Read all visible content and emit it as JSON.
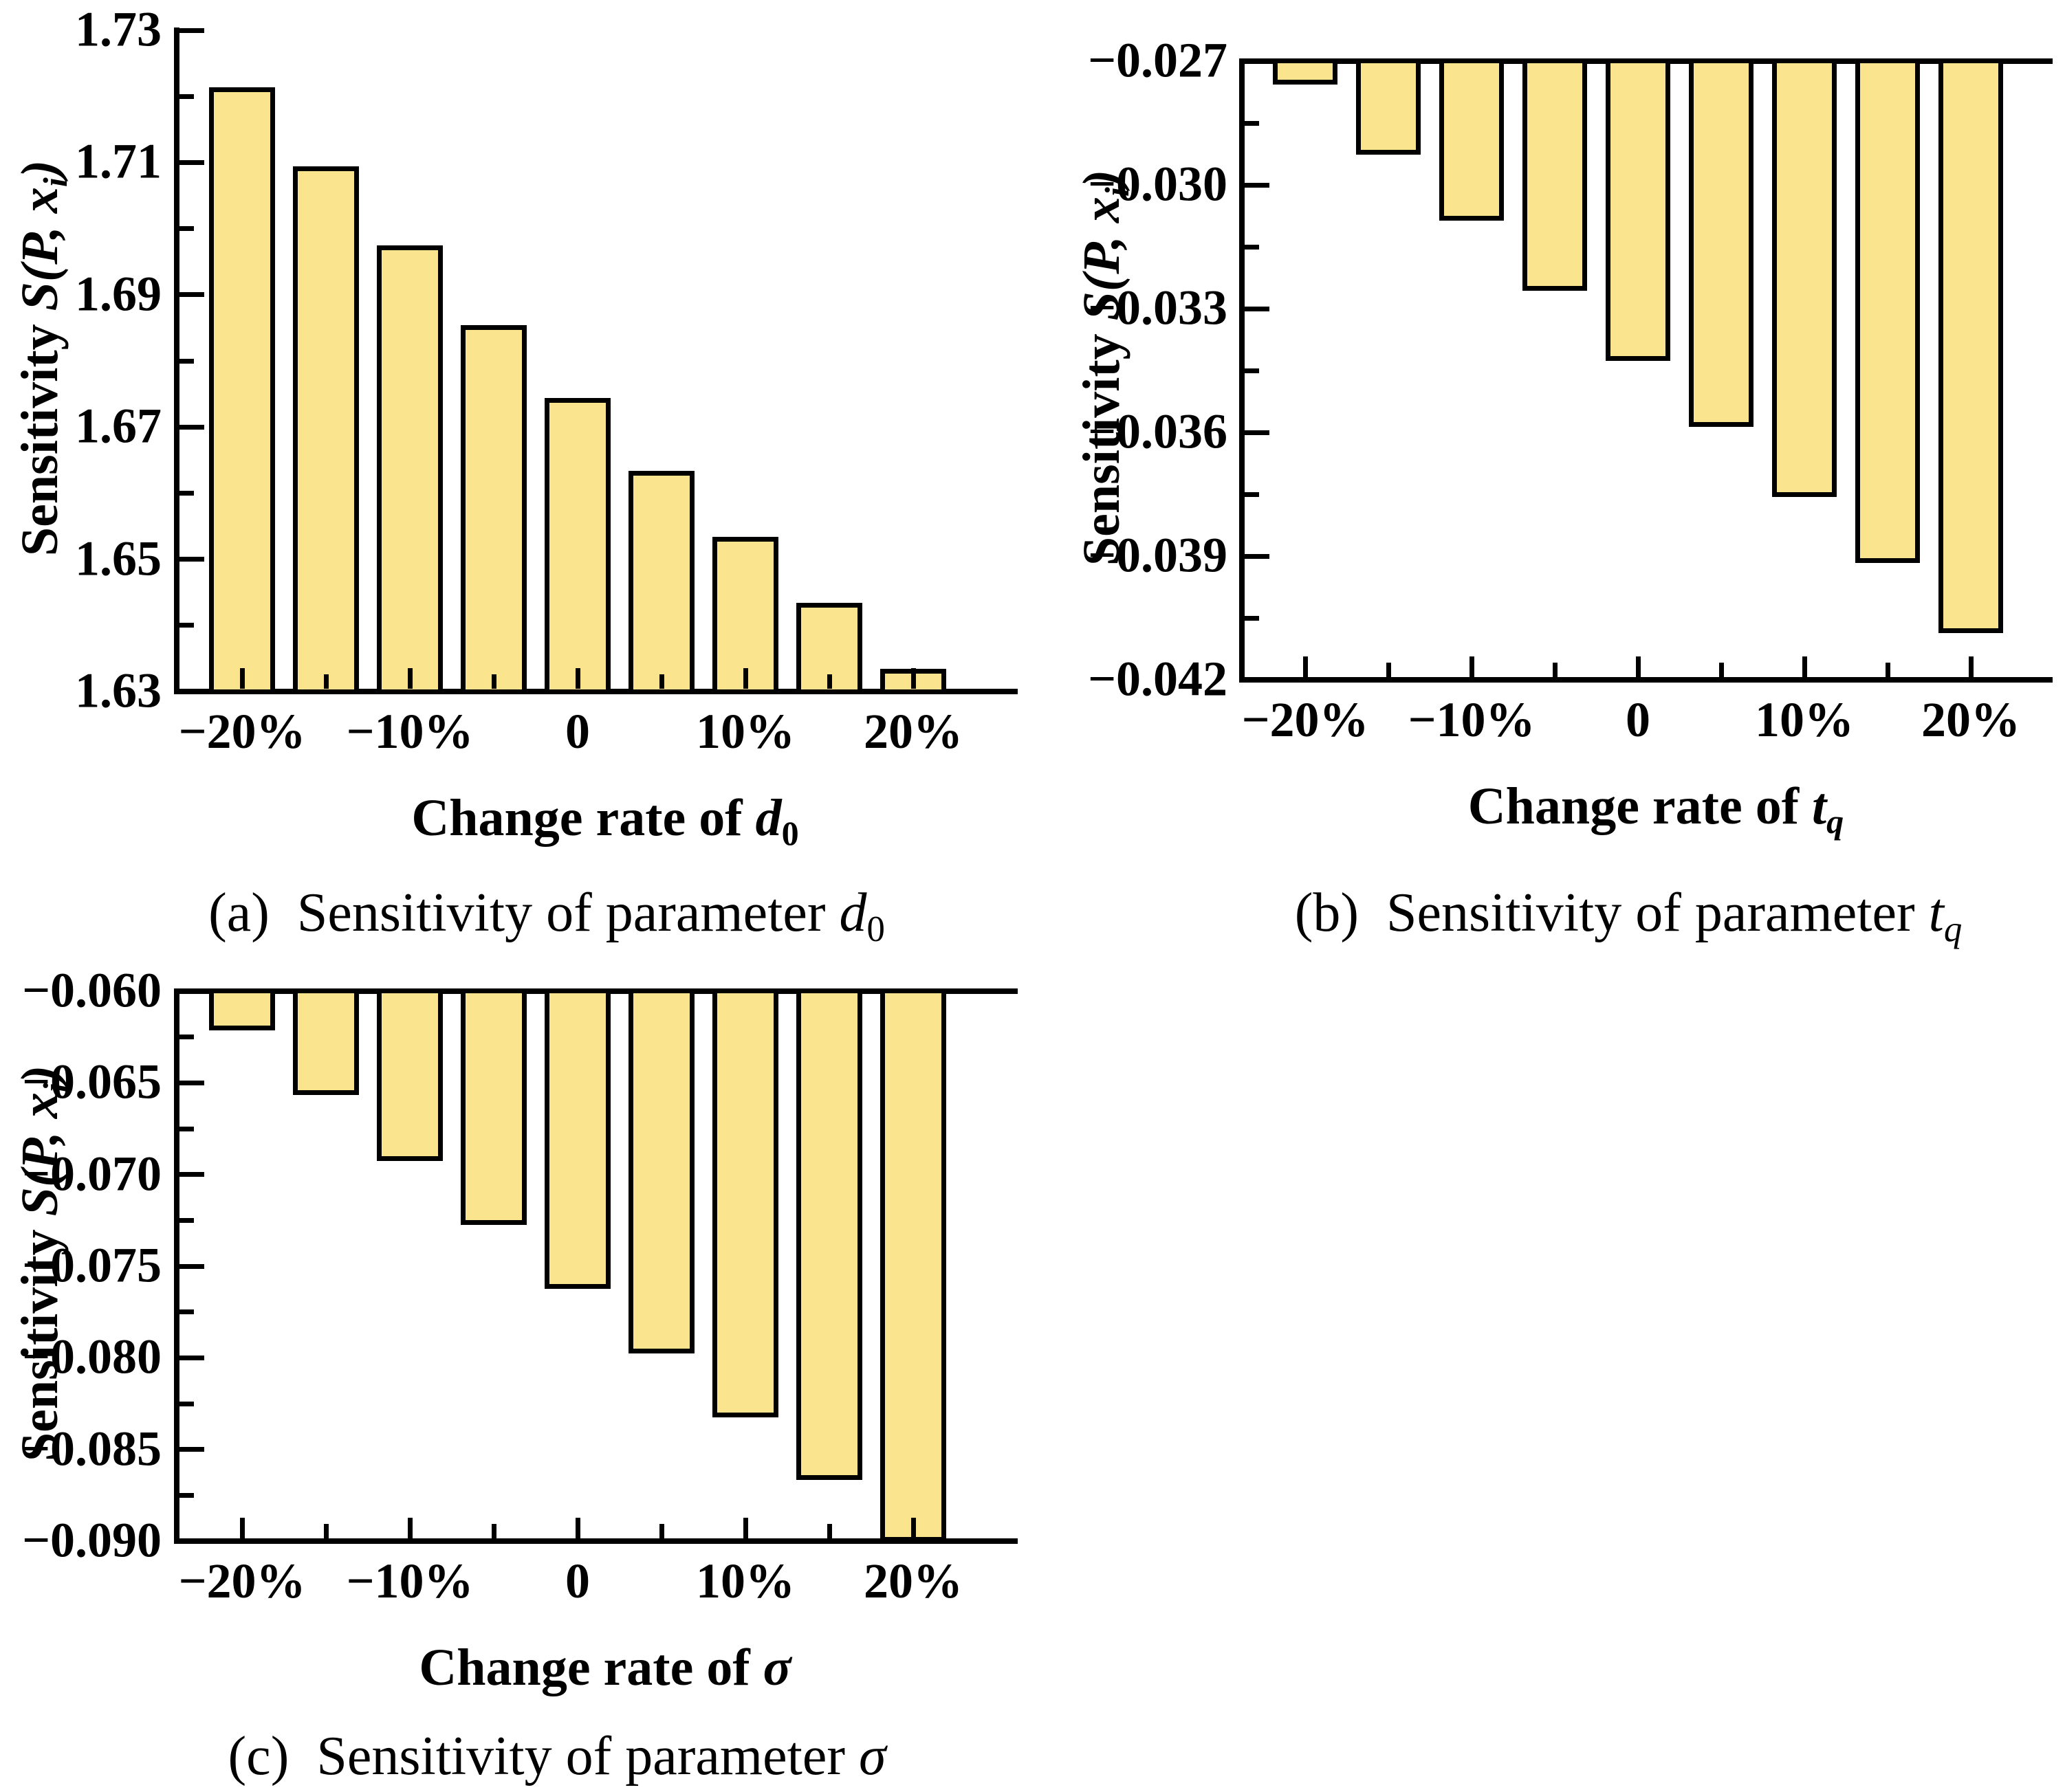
{
  "figure": {
    "background": "#ffffff",
    "bar_fill": "#FAE48E",
    "bar_edge": "#000000",
    "axis_color": "#000000",
    "text_color": "#000000"
  },
  "chart_data": [
    {
      "id": "a",
      "type": "bar",
      "title": "",
      "categories": [
        "−20%",
        "−15%",
        "−10%",
        "−5%",
        "0",
        "5%",
        "10%",
        "15%",
        "20%"
      ],
      "values": [
        1.721,
        1.709,
        1.697,
        1.685,
        1.674,
        1.663,
        1.653,
        1.643,
        1.633
      ],
      "baseline": "bottom",
      "baseline_value": 1.63,
      "ylim": [
        1.63,
        1.73
      ],
      "ytick_values": [
        1.73,
        1.71,
        1.69,
        1.67,
        1.65,
        1.63
      ],
      "ytick_labels": [
        "1.73",
        "1.71",
        "1.69",
        "1.67",
        "1.65",
        "1.63"
      ],
      "minor_ytick_step": 0.01,
      "xtick_labels": [
        "−20%",
        "−10%",
        "0",
        "10%",
        "20%"
      ],
      "xlabel_parts": {
        "prefix": "Change rate of ",
        "sym": "d",
        "sym_italic": true,
        "sub": "0",
        "sub_italic": false
      },
      "ylabel_parts": {
        "prefix": "Sensitivity ",
        "math": "S(P, x",
        "sub": "i",
        "suffix": ")"
      },
      "caption_parts": {
        "index": "(a)",
        "text": "Sensitivity of parameter ",
        "sym": "d",
        "sym_italic": true,
        "sub": "0",
        "sub_italic": false
      },
      "legend": "none",
      "grid": false,
      "bar_color": "#FAE48E"
    },
    {
      "id": "b",
      "type": "bar",
      "title": "",
      "categories": [
        "−20%",
        "−15%",
        "−10%",
        "−5%",
        "0",
        "5%",
        "10%",
        "15%",
        "20%"
      ],
      "values": [
        -0.0275,
        -0.0292,
        -0.0308,
        -0.0325,
        -0.0342,
        -0.0358,
        -0.0375,
        -0.0391,
        -0.0408
      ],
      "baseline": "top",
      "baseline_value": -0.027,
      "ylim": [
        -0.042,
        -0.027
      ],
      "ytick_values": [
        -0.027,
        -0.03,
        -0.033,
        -0.036,
        -0.039,
        -0.042
      ],
      "ytick_labels": [
        "−0.027",
        "−0.030",
        "−0.033",
        "−0.036",
        "−0.039",
        "−0.042"
      ],
      "minor_ytick_step": 0.0015,
      "xtick_labels": [
        "−20%",
        "−10%",
        "0",
        "10%",
        "20%"
      ],
      "xlabel_parts": {
        "prefix": "Change rate of ",
        "sym": "t",
        "sym_italic": true,
        "sub": "q",
        "sub_italic": true
      },
      "ylabel_parts": {
        "prefix": "Sensitivity ",
        "math": "S(P, x",
        "sub": "i",
        "suffix": ")"
      },
      "caption_parts": {
        "index": "(b)",
        "text": "Sensitivity of parameter ",
        "sym": "t",
        "sym_italic": true,
        "sub": "q",
        "sub_italic": true
      },
      "legend": "none",
      "grid": false,
      "bar_color": "#FAE48E"
    },
    {
      "id": "c",
      "type": "bar",
      "title": "",
      "categories": [
        "−20%",
        "−15%",
        "−10%",
        "−5%",
        "0",
        "5%",
        "10%",
        "15%",
        "20%"
      ],
      "values": [
        -0.062,
        -0.0655,
        -0.0691,
        -0.0726,
        -0.0761,
        -0.0796,
        -0.0831,
        -0.0865,
        -0.0899
      ],
      "baseline": "top",
      "baseline_value": -0.06,
      "ylim": [
        -0.09,
        -0.06
      ],
      "ytick_values": [
        -0.06,
        -0.065,
        -0.07,
        -0.075,
        -0.08,
        -0.085,
        -0.09
      ],
      "ytick_labels": [
        "−0.060",
        "−0.065",
        "−0.070",
        "−0.075",
        "−0.080",
        "−0.085",
        "−0.090"
      ],
      "minor_ytick_step": 0.0025,
      "xtick_labels": [
        "−20%",
        "−10%",
        "0",
        "10%",
        "20%"
      ],
      "xlabel_parts": {
        "prefix": "Change rate of ",
        "sym": "σ",
        "sym_italic": true,
        "sub": "",
        "sub_italic": false
      },
      "ylabel_parts": {
        "prefix": "Sensitivity ",
        "math": "S(P, x",
        "sub": "i",
        "suffix": ")"
      },
      "caption_parts": {
        "index": "(c)",
        "text": "Sensitivity of parameter ",
        "sym": "σ",
        "sym_italic": true,
        "sub": "",
        "sub_italic": false
      },
      "legend": "none",
      "grid": false,
      "bar_color": "#FAE48E"
    }
  ]
}
